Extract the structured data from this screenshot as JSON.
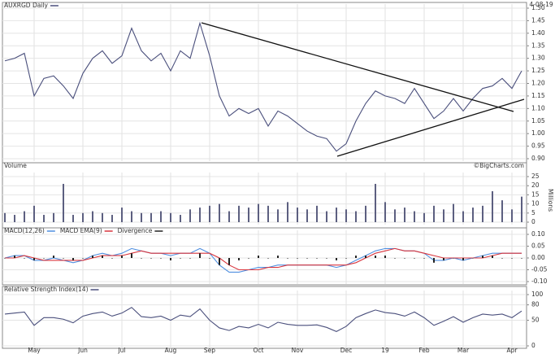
{
  "chart_data": [
    {
      "type": "line",
      "title": "AUXRGD Daily",
      "date": "4-08-19",
      "credit": "©BigCharts.com",
      "series": [
        {
          "name": "AUXRGD Daily",
          "color": "#4a4f7c",
          "values": [
            1.29,
            1.3,
            1.32,
            1.15,
            1.22,
            1.23,
            1.19,
            1.14,
            1.24,
            1.3,
            1.33,
            1.28,
            1.31,
            1.42,
            1.33,
            1.29,
            1.32,
            1.25,
            1.33,
            1.3,
            1.44,
            1.31,
            1.15,
            1.07,
            1.1,
            1.08,
            1.1,
            1.03,
            1.09,
            1.07,
            1.04,
            1.01,
            0.99,
            0.98,
            0.93,
            0.96,
            1.05,
            1.12,
            1.17,
            1.15,
            1.14,
            1.12,
            1.18,
            1.12,
            1.06,
            1.09,
            1.14,
            1.09,
            1.14,
            1.18,
            1.19,
            1.22,
            1.18,
            1.25
          ]
        }
      ],
      "ylim": [
        0.9,
        1.5
      ],
      "yticks": [
        {
          "value": 0.9,
          "label": "0.90"
        },
        {
          "value": 0.95,
          "label": "0.95"
        },
        {
          "value": 1.0,
          "label": "1.00"
        },
        {
          "value": 1.05,
          "label": "1.05"
        },
        {
          "value": 1.1,
          "label": "1.10"
        },
        {
          "value": 1.15,
          "label": "1.15"
        },
        {
          "value": 1.2,
          "label": "1.20"
        },
        {
          "value": 1.25,
          "label": "1.25"
        },
        {
          "value": 1.3,
          "label": "1.30"
        },
        {
          "value": 1.35,
          "label": "1.35"
        },
        {
          "value": 1.4,
          "label": "1.40"
        },
        {
          "value": 1.45,
          "label": "1.45"
        },
        {
          "value": 1.5,
          "label": "1.50"
        }
      ],
      "grid": true
    },
    {
      "type": "bar",
      "title": "Volume",
      "ylabel": "Millions",
      "series": [
        {
          "name": "Volume",
          "color": "#5c5f80",
          "values": [
            5,
            4,
            6,
            9,
            4,
            5,
            21,
            4,
            5,
            6,
            5,
            4,
            8,
            6,
            5,
            5,
            6,
            5,
            4,
            7,
            8,
            9,
            10,
            6,
            9,
            8,
            10,
            9,
            7,
            11,
            8,
            7,
            9,
            6,
            8,
            7,
            6,
            9,
            21,
            11,
            7,
            8,
            6,
            5,
            9,
            7,
            10,
            6,
            8,
            9,
            17,
            12,
            7,
            14
          ]
        }
      ],
      "ylim": [
        0,
        25
      ],
      "yticks": [
        0,
        5,
        10,
        15,
        20,
        25
      ],
      "grid": true
    },
    {
      "type": "line",
      "series": [
        {
          "name": "MACD(12,26)",
          "color": "#4f8fe0",
          "values": [
            0,
            0.01,
            0.01,
            -0.01,
            -0.01,
            0,
            -0.01,
            -0.02,
            -0.01,
            0.01,
            0.02,
            0.01,
            0.02,
            0.04,
            0.03,
            0.02,
            0.02,
            0.01,
            0.02,
            0.02,
            0.04,
            0.02,
            -0.03,
            -0.06,
            -0.06,
            -0.05,
            -0.04,
            -0.04,
            -0.03,
            -0.03,
            -0.03,
            -0.03,
            -0.03,
            -0.03,
            -0.04,
            -0.03,
            -0.01,
            0.01,
            0.03,
            0.04,
            0.04,
            0.03,
            0.03,
            0.02,
            -0.01,
            -0.01,
            0,
            -0.01,
            0,
            0.01,
            0.02,
            0.02,
            0.02,
            0.02
          ]
        },
        {
          "name": "MACD EMA(9)",
          "color": "#d9363e",
          "values": [
            0,
            0,
            0.01,
            0,
            -0.01,
            -0.01,
            -0.01,
            -0.01,
            -0.01,
            0,
            0.01,
            0.01,
            0.01,
            0.02,
            0.03,
            0.02,
            0.02,
            0.02,
            0.02,
            0.02,
            0.02,
            0.02,
            0,
            -0.03,
            -0.05,
            -0.05,
            -0.05,
            -0.04,
            -0.04,
            -0.03,
            -0.03,
            -0.03,
            -0.03,
            -0.03,
            -0.03,
            -0.03,
            -0.02,
            0,
            0.02,
            0.03,
            0.04,
            0.03,
            0.03,
            0.02,
            0.01,
            0,
            0,
            0,
            0,
            0,
            0.01,
            0.02,
            0.02,
            0.02
          ]
        },
        {
          "name": "Divergence",
          "color": "#222222",
          "type": "bar",
          "values": [
            0,
            0.01,
            0,
            -0.01,
            0,
            0.01,
            0,
            -0.01,
            0,
            0.01,
            0.01,
            0,
            0.01,
            0.02,
            0,
            0,
            0,
            -0.01,
            0,
            0,
            0.02,
            0,
            -0.03,
            -0.03,
            -0.01,
            0,
            0.01,
            0,
            0.01,
            0,
            0,
            0,
            0,
            0,
            -0.01,
            0,
            0.01,
            0.01,
            0.01,
            0.01,
            0,
            0,
            0,
            0,
            -0.02,
            -0.01,
            0,
            -0.01,
            0,
            0.01,
            0.01,
            0,
            0,
            0
          ]
        }
      ],
      "ylim": [
        -0.1,
        0.1
      ],
      "yticks": [
        {
          "value": -0.1,
          "label": "-0.10"
        },
        {
          "value": -0.05,
          "label": "-0.05"
        },
        {
          "value": 0,
          "label": "0.00"
        },
        {
          "value": 0.05,
          "label": "0.05"
        },
        {
          "value": 0.1,
          "label": "0.10"
        }
      ],
      "grid": true
    },
    {
      "type": "line",
      "series": [
        {
          "name": "Relative Strength Index(14)",
          "color": "#4a4f7c",
          "values": [
            62,
            64,
            66,
            40,
            55,
            55,
            52,
            45,
            58,
            63,
            66,
            58,
            64,
            75,
            57,
            55,
            58,
            50,
            60,
            57,
            72,
            50,
            35,
            30,
            38,
            35,
            42,
            35,
            46,
            42,
            40,
            40,
            41,
            36,
            28,
            38,
            55,
            63,
            70,
            65,
            63,
            58,
            66,
            55,
            40,
            48,
            57,
            46,
            55,
            62,
            60,
            62,
            55,
            68
          ]
        }
      ],
      "ylim": [
        0,
        100
      ],
      "yticks": [
        0,
        50,
        80,
        100
      ],
      "grid": true,
      "categories": [
        null,
        null,
        null,
        "May",
        null,
        null,
        null,
        null,
        "Jun",
        null,
        null,
        null,
        "Jul",
        null,
        null,
        null,
        null,
        "Aug",
        null,
        null,
        null,
        "Sep",
        null,
        null,
        null,
        null,
        "Oct",
        null,
        null,
        null,
        "Nov",
        null,
        null,
        null,
        null,
        "Dec",
        null,
        null,
        null,
        "19",
        null,
        null,
        null,
        "Feb",
        null,
        null,
        null,
        "Mar",
        null,
        null,
        null,
        null,
        "Apr",
        null
      ]
    }
  ]
}
